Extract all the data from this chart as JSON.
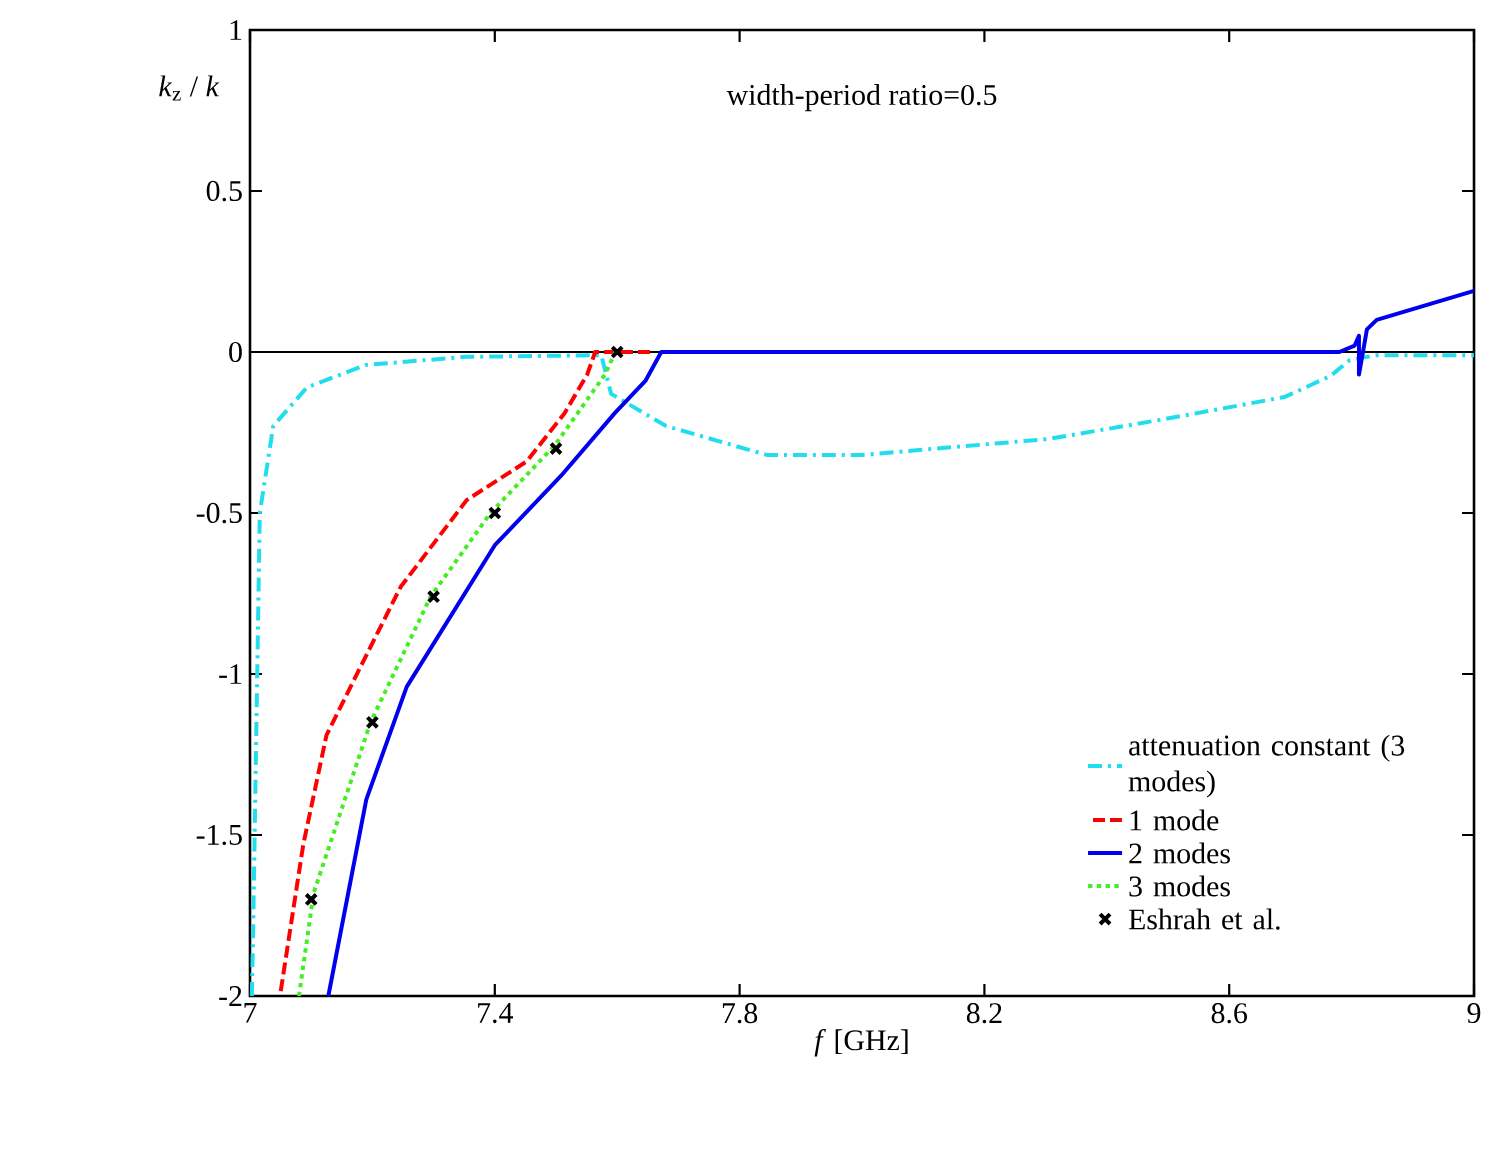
{
  "chart_data": {
    "type": "line",
    "xlabel": "*f* [GHz]",
    "ylabel": "*k*$_{z}$ / *k*",
    "annotations": [
      "width-period ratio=0.5"
    ],
    "xlim": [
      7,
      9
    ],
    "ylim": [
      -2,
      1
    ],
    "xticks": [
      7,
      7.4,
      7.8,
      8.2,
      8.6,
      9
    ],
    "yticks": [
      -2,
      -1.5,
      -1,
      -0.5,
      0,
      0.5,
      1
    ],
    "ref_lines": [
      {
        "axis": "y",
        "value": 0,
        "color": "#000000"
      }
    ],
    "legend": "bottom right",
    "grid": false,
    "series": [
      {
        "name": "attenuation constant (3 modes)",
        "line_style": "dashdot",
        "color": "#22dded",
        "x": [
          7.003,
          7.005,
          7.016,
          7.038,
          7.093,
          7.19,
          7.354,
          7.574,
          7.59,
          7.68,
          7.845,
          8.0,
          8.305,
          8.49,
          8.69,
          8.765,
          8.797,
          8.84,
          9.0
        ],
        "values": [
          -2,
          -1.81,
          -0.5,
          -0.23,
          -0.11,
          -0.04,
          -0.015,
          -0.01,
          -0.13,
          -0.23,
          -0.32,
          -0.32,
          -0.27,
          -0.21,
          -0.14,
          -0.075,
          -0.025,
          -0.01,
          -0.01
        ]
      },
      {
        "name": "1 mode",
        "line_style": "dashed",
        "color": "#ff0000",
        "x": [
          7.049,
          7.087,
          7.125,
          7.18,
          7.246,
          7.354,
          7.452,
          7.514,
          7.551,
          7.564,
          7.66
        ],
        "values": [
          -2,
          -1.53,
          -1.19,
          -0.98,
          -0.73,
          -0.46,
          -0.34,
          -0.19,
          -0.07,
          0,
          0
        ]
      },
      {
        "name": "2 modes",
        "line_style": "solid",
        "color": "#0000ee",
        "x": [
          7.128,
          7.19,
          7.256,
          7.4,
          7.508,
          7.596,
          7.646,
          7.672,
          8.78,
          8.805,
          8.812,
          8.812,
          8.825,
          8.841,
          8.93,
          9.0
        ],
        "values": [
          -2,
          -1.39,
          -1.04,
          -0.6,
          -0.385,
          -0.19,
          -0.09,
          0,
          0,
          0.02,
          0.05,
          -0.07,
          0.07,
          0.1,
          0.15,
          0.19
        ]
      },
      {
        "name": "3 modes",
        "line_style": "dotted",
        "color": "#44ee22",
        "x": [
          7.08,
          7.104,
          7.197,
          7.295,
          7.393,
          7.498,
          7.58,
          7.597
        ],
        "values": [
          -2,
          -1.68,
          -1.15,
          -0.76,
          -0.5,
          -0.29,
          -0.07,
          0
        ]
      },
      {
        "name": "Eshrah et al.",
        "type": "scatter",
        "marker": "cross",
        "color": "#000000",
        "x": [
          7.1,
          7.2,
          7.3,
          7.4,
          7.5,
          7.6
        ],
        "values": [
          -1.7,
          -1.15,
          -0.76,
          -0.5,
          -0.3,
          0
        ]
      }
    ]
  }
}
